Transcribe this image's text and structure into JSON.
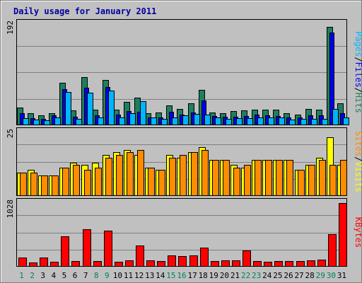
{
  "chart_data": {
    "type": "bar",
    "title": "Daily usage for January 2011",
    "categories": [
      "1",
      "2",
      "3",
      "4",
      "5",
      "6",
      "7",
      "8",
      "9",
      "10",
      "11",
      "12",
      "13",
      "14",
      "15",
      "16",
      "17",
      "18",
      "19",
      "20",
      "21",
      "22",
      "23",
      "24",
      "25",
      "26",
      "27",
      "28",
      "29",
      "30",
      "31"
    ],
    "weekend_days": [
      1,
      2,
      8,
      9,
      15,
      16,
      22,
      23,
      29,
      30
    ],
    "panels": [
      {
        "name": "top",
        "ymax_label": "192",
        "ymax": 192,
        "axis_labels": [
          "Pages",
          "Files",
          "Hits"
        ],
        "series": [
          {
            "name": "Hits",
            "color": "#1f7f5f",
            "values": [
              33,
              22,
              18,
              22,
              80,
              27,
              90,
              28,
              85,
              28,
              43,
              52,
              22,
              23,
              37,
              30,
              40,
              66,
              23,
              22,
              26,
              27,
              28,
              28,
              28,
              22,
              19,
              30,
              28,
              186,
              40
            ]
          },
          {
            "name": "Files",
            "color": "#0000ee",
            "values": [
              22,
              12,
              11,
              18,
              68,
              15,
              70,
              18,
              72,
              19,
              26,
              25,
              13,
              13,
              25,
              19,
              23,
              46,
              16,
              15,
              15,
              16,
              19,
              18,
              16,
              14,
              13,
              18,
              18,
              176,
              22
            ]
          },
          {
            "name": "Pages",
            "color": "#00b4ff",
            "values": [
              12,
              10,
              8,
              13,
              62,
              11,
              61,
              13,
              65,
              14,
              22,
              45,
              14,
              11,
              14,
              18,
              20,
              19,
              14,
              11,
              12,
              12,
              14,
              14,
              13,
              10,
              11,
              11,
              11,
              30,
              14
            ]
          }
        ]
      },
      {
        "name": "middle",
        "ymax_label": "25",
        "ymax": 25,
        "axis_labels": [
          "Sites",
          "Visits"
        ],
        "series": [
          {
            "name": "Visits",
            "color": "#ffff00",
            "values": [
              9,
              10,
              8,
              8,
              11,
              13,
              12,
              13,
              16,
              17,
              18,
              16,
              11,
              10,
              16,
              15,
              17,
              19,
              14,
              14,
              12,
              11,
              14,
              14,
              14,
              14,
              10,
              12,
              15,
              23,
              12
            ]
          },
          {
            "name": "Sites",
            "color": "#ff8c00",
            "values": [
              9,
              9,
              8,
              8,
              11,
              12,
              10,
              11,
              15,
              16,
              17,
              18,
              11,
              10,
              15,
              16,
              17,
              18,
              14,
              14,
              11,
              12,
              14,
              14,
              14,
              14,
              10,
              12,
              14,
              12,
              14
            ]
          }
        ]
      },
      {
        "name": "bottom",
        "ymax_label": "1028",
        "ymax": 1028,
        "axis_labels": [
          "KBytes"
        ],
        "series": [
          {
            "name": "KBytes",
            "color": "#ff0000",
            "values": [
              140,
              55,
              135,
              75,
              485,
              78,
              605,
              78,
              580,
              74,
              97,
              330,
              95,
              80,
              170,
              162,
              175,
              305,
              83,
              87,
              98,
              250,
              85,
              74,
              80,
              79,
              86,
              87,
              108,
              525,
              1028
            ]
          }
        ]
      }
    ]
  }
}
